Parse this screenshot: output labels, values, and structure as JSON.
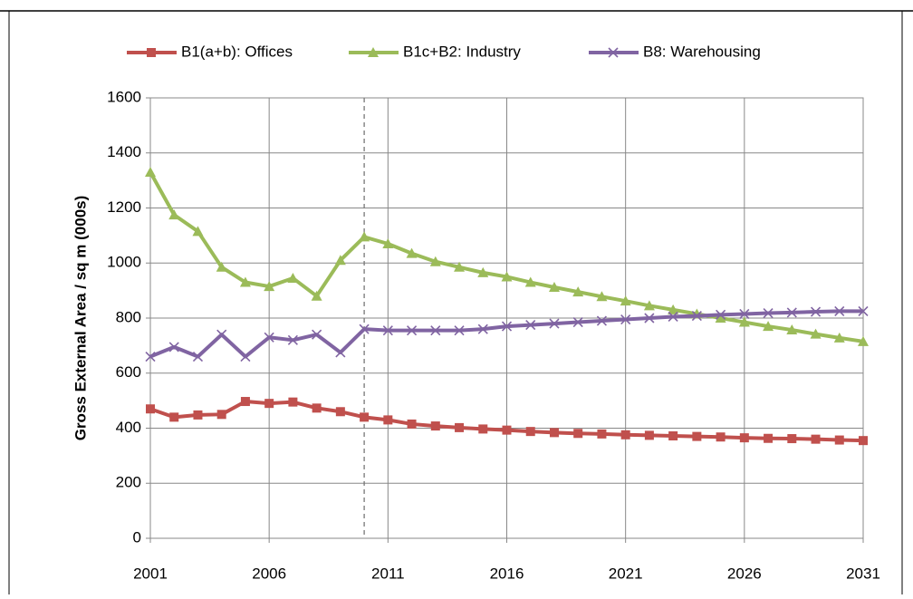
{
  "chart_data": {
    "type": "line",
    "y_label": "Gross External Area / sq m (000s)",
    "x": [
      2001,
      2002,
      2003,
      2004,
      2005,
      2006,
      2007,
      2008,
      2009,
      2010,
      2011,
      2012,
      2013,
      2014,
      2015,
      2016,
      2017,
      2018,
      2019,
      2020,
      2021,
      2022,
      2023,
      2024,
      2025,
      2026,
      2027,
      2028,
      2029,
      2030,
      2031
    ],
    "series": [
      {
        "name": "B1(a+b): Offices",
        "color": "#c0504d",
        "marker": "square",
        "values": [
          470,
          440,
          448,
          450,
          497,
          490,
          495,
          473,
          460,
          440,
          430,
          415,
          408,
          402,
          397,
          393,
          388,
          384,
          381,
          379,
          376,
          374,
          372,
          370,
          368,
          365,
          363,
          362,
          360,
          357,
          355
        ]
      },
      {
        "name": "B1c+B2: Industry",
        "color": "#9bbb59",
        "marker": "triangle",
        "values": [
          1330,
          1175,
          1115,
          985,
          930,
          915,
          945,
          880,
          1010,
          1095,
          1070,
          1035,
          1005,
          985,
          965,
          950,
          930,
          912,
          895,
          878,
          862,
          845,
          830,
          815,
          800,
          785,
          770,
          757,
          742,
          728,
          715
        ]
      },
      {
        "name": "B8: Warehousing",
        "color": "#8064a2",
        "marker": "x",
        "values": [
          660,
          695,
          660,
          740,
          660,
          730,
          720,
          740,
          675,
          760,
          755,
          755,
          755,
          755,
          760,
          770,
          775,
          780,
          785,
          790,
          795,
          800,
          805,
          808,
          812,
          815,
          818,
          820,
          823,
          825,
          825
        ]
      }
    ],
    "xlim": [
      2001,
      2031
    ],
    "xticks": [
      2001,
      2006,
      2011,
      2016,
      2021,
      2026,
      2031
    ],
    "ylim": [
      0,
      1600
    ],
    "yticks": [
      0,
      200,
      400,
      600,
      800,
      1000,
      1200,
      1400,
      1600
    ],
    "grid": true,
    "legend": "top",
    "vline_x": 2010
  }
}
